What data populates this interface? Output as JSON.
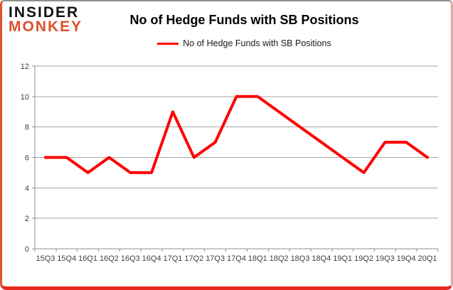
{
  "logo": {
    "line1": "INSIDER",
    "line2": "MONKEY"
  },
  "header": {
    "title": "No of Hedge Funds with SB Positions"
  },
  "legend": {
    "label": "No of Hedge Funds with SB Positions",
    "line_color": "#fe0000"
  },
  "chart_data": {
    "type": "line",
    "title": "No of Hedge Funds with SB Positions",
    "categories": [
      "15Q3",
      "15Q4",
      "16Q1",
      "16Q2",
      "16Q3",
      "16Q4",
      "17Q1",
      "17Q2",
      "17Q3",
      "17Q4",
      "18Q1",
      "18Q2",
      "18Q3",
      "18Q4",
      "19Q1",
      "19Q2",
      "19Q3",
      "19Q4",
      "20Q1"
    ],
    "series": [
      {
        "name": "No of Hedge Funds with SB Positions",
        "values": [
          6,
          6,
          5,
          6,
          5,
          5,
          9,
          6,
          7,
          10,
          10,
          9,
          8,
          7,
          6,
          5,
          7,
          7,
          6
        ]
      }
    ],
    "xlabel": "",
    "ylabel": "",
    "ylim": [
      0,
      12
    ],
    "yticks": [
      0,
      2,
      4,
      6,
      8,
      10,
      12
    ],
    "grid": true,
    "legend_position": "top",
    "line_color": "#fe0000",
    "grid_color": "#a6a6a6",
    "axis_color": "#8f8f8f",
    "label_color": "#3f3f3f"
  },
  "frame": {
    "border_top_color": "#8f8f8f",
    "border_right_color": "#dfaaaa",
    "border_bottom_color": "#e8281e",
    "border_left_color": "#df5430",
    "logo_insider_color": "#111111",
    "logo_monkey_color": "#d9512c"
  }
}
